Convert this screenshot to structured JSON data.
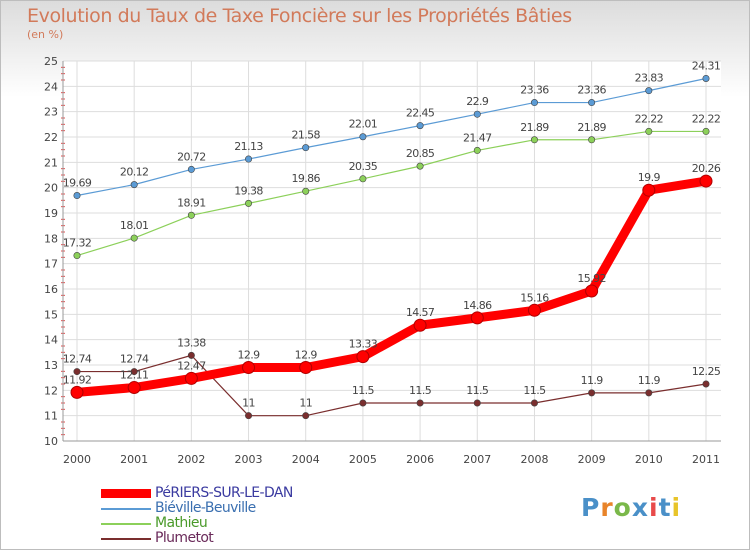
{
  "title": "Evolution du Taux de Taxe Foncière sur les Propriétés Bâties",
  "subtitle": "(en %)",
  "logo": {
    "text": "Proxiti",
    "letters": [
      "P",
      "r",
      "o",
      "x",
      "i",
      "t",
      "i"
    ],
    "colors": [
      "#4a90c8",
      "#e8842a",
      "#7ab84a",
      "#4a90c8",
      "#e84a4a",
      "#4a90c8",
      "#e8c42a"
    ]
  },
  "chart_data": {
    "type": "line",
    "title": "Evolution du Taux de Taxe Foncière sur les Propriétés Bâties",
    "ylabel": "(en %)",
    "xlabel": "",
    "x": [
      "2000",
      "2001",
      "2002",
      "2003",
      "2004",
      "2005",
      "2006",
      "2007",
      "2008",
      "2009",
      "2010",
      "2011"
    ],
    "ylim": [
      10,
      25
    ],
    "yticks": [
      "10",
      "11",
      "12",
      "13",
      "14",
      "15",
      "16",
      "17",
      "18",
      "19",
      "20",
      "21",
      "22",
      "23",
      "24",
      "25"
    ],
    "grid": true,
    "legend_position": "bottom-left",
    "series": [
      {
        "name": "PéRIERS-SUR-LE-DAN",
        "color": "#ff0000",
        "emphasis": "thick",
        "values": [
          11.92,
          12.11,
          12.47,
          12.9,
          12.9,
          13.33,
          14.57,
          14.86,
          15.16,
          15.92,
          19.9,
          20.26
        ],
        "labels": [
          "11.92",
          "12.11",
          "12.47",
          "12.9",
          "12.9",
          "13.33",
          "14.57",
          "14.86",
          "15.16",
          "15.92",
          "19.9",
          "20.26"
        ]
      },
      {
        "name": "Biéville-Beuville",
        "color": "#5b9bd5",
        "emphasis": "normal",
        "values": [
          19.69,
          20.12,
          20.72,
          21.13,
          21.58,
          22.01,
          22.45,
          22.9,
          23.36,
          23.36,
          23.83,
          24.31
        ],
        "labels": [
          "19.69",
          "20.12",
          "20.72",
          "21.13",
          "21.58",
          "22.01",
          "22.45",
          "22.9",
          "23.36",
          "23.36",
          "23.83",
          "24.31"
        ]
      },
      {
        "name": "Mathieu",
        "color": "#8cd05a",
        "emphasis": "normal",
        "values": [
          17.32,
          18.01,
          18.91,
          19.38,
          19.86,
          20.35,
          20.85,
          21.47,
          21.89,
          21.89,
          22.22,
          22.22
        ],
        "labels": [
          "17.32",
          "18.01",
          "18.91",
          "19.38",
          "19.86",
          "20.35",
          "20.85",
          "21.47",
          "21.89",
          "21.89",
          "22.22",
          "22.22"
        ]
      },
      {
        "name": "Plumetot",
        "color": "#7a2e2e",
        "emphasis": "normal",
        "values": [
          12.74,
          12.74,
          13.38,
          11,
          11,
          11.5,
          11.5,
          11.5,
          11.5,
          11.9,
          11.9,
          12.25
        ],
        "labels": [
          "12.74",
          "12.74",
          "13.38",
          "11",
          "11",
          "11.5",
          "11.5",
          "11.5",
          "11.5",
          "11.9",
          "11.9",
          "12.25"
        ]
      }
    ]
  }
}
